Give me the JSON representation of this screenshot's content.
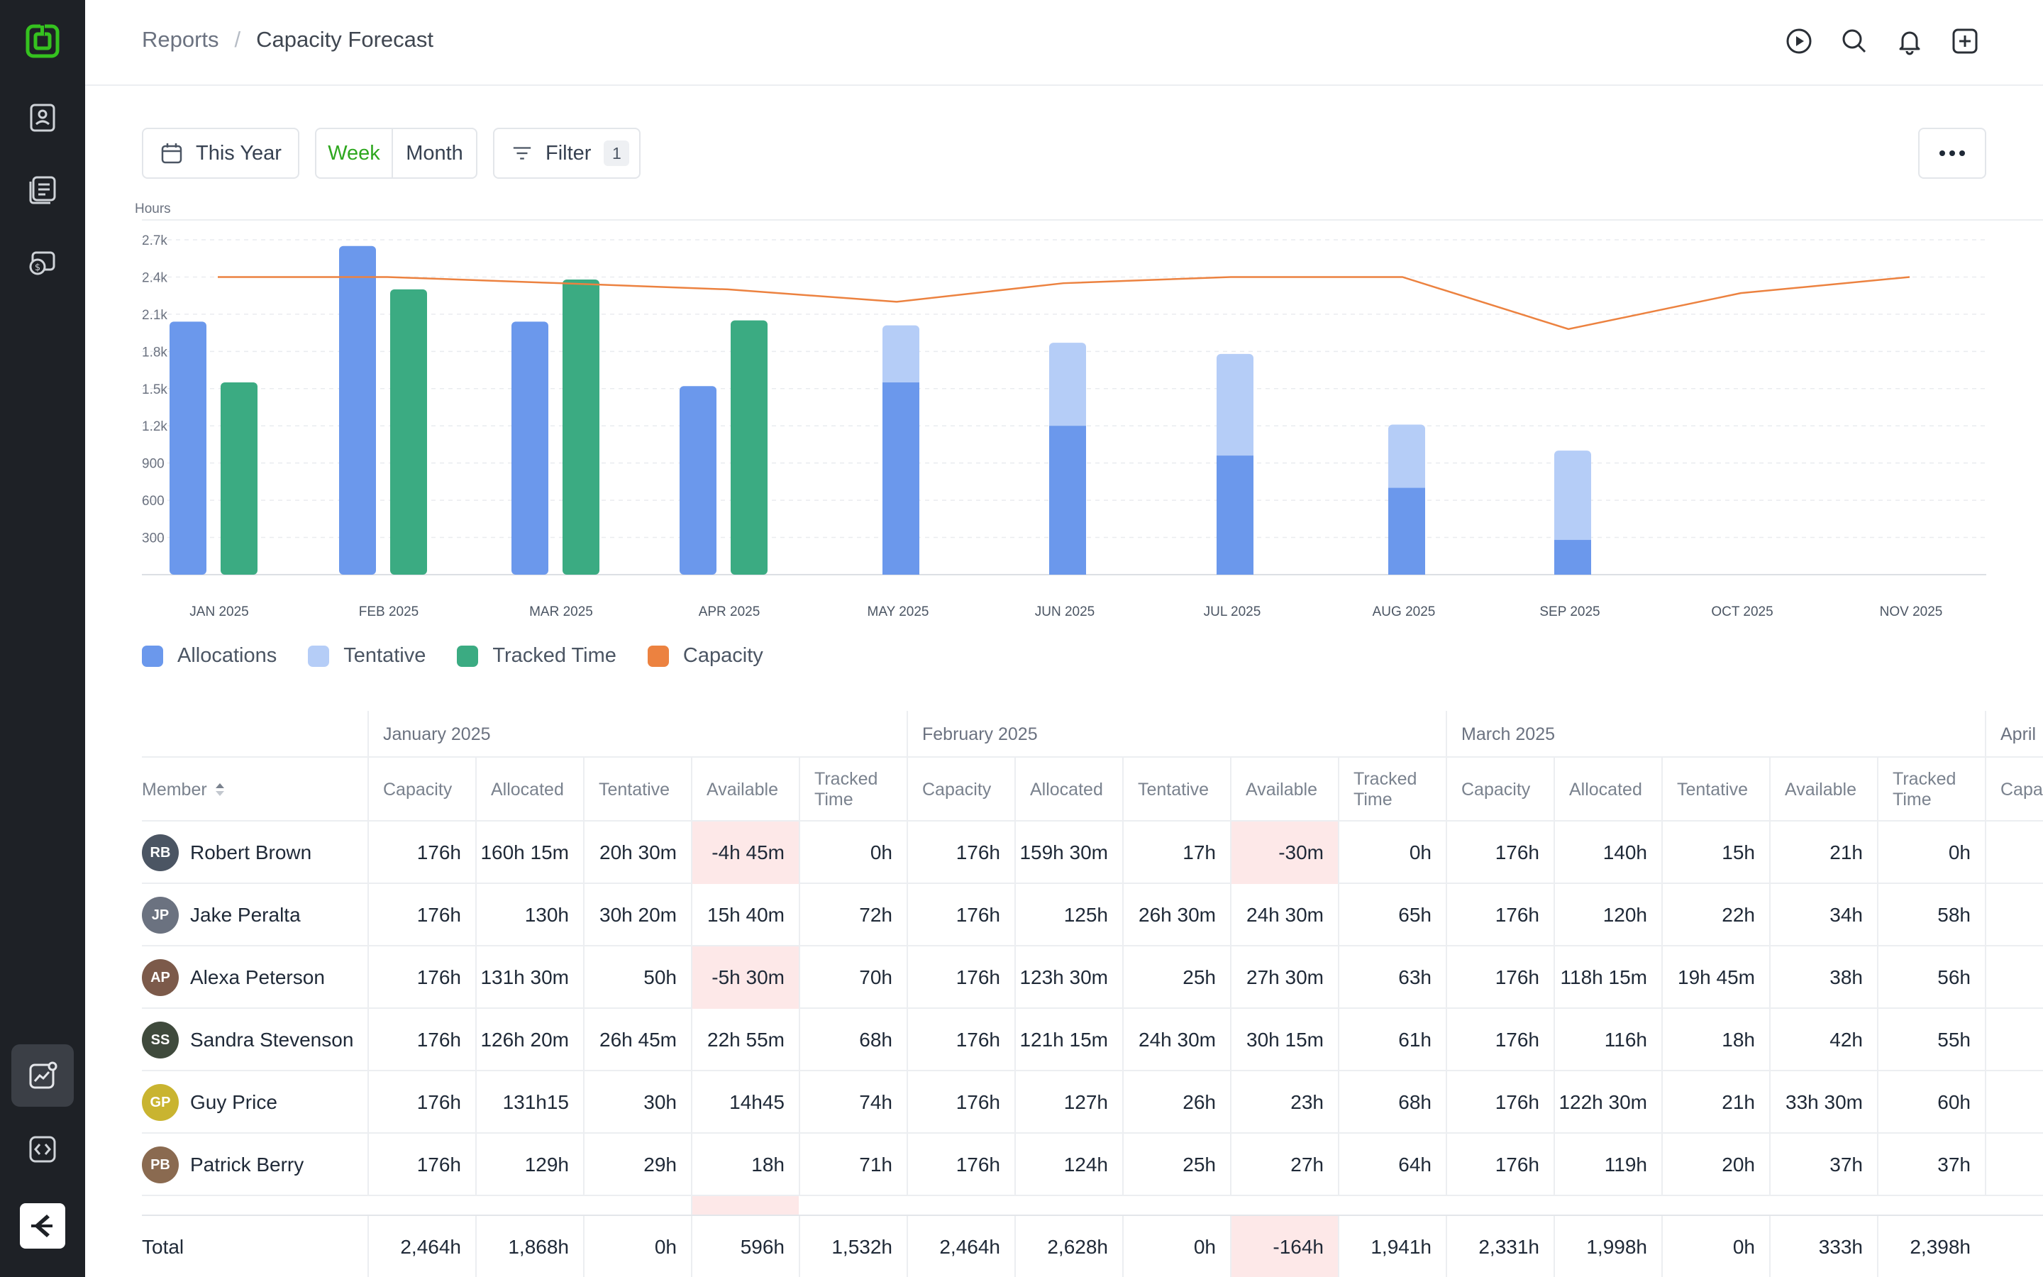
{
  "header": {
    "breadcrumb": [
      "Reports",
      "Capacity Forecast"
    ],
    "separator": "/"
  },
  "icons": {
    "sidebar": [
      "logo-icon",
      "contacts-icon",
      "projects-icon",
      "billing-icon",
      "reports-icon",
      "integrations-icon",
      "brand-icon"
    ],
    "header": [
      "play-icon",
      "search-icon",
      "bell-icon",
      "add-icon"
    ]
  },
  "toolbar": {
    "date_label": "This Year",
    "week_label": "Week",
    "month_label": "Month",
    "filter_label": "Filter",
    "filter_count": "1"
  },
  "colors": {
    "allocations": "#6b98ec",
    "tentative": "#b5cdf7",
    "tracked": "#3bab82",
    "capacity": "#ec8240",
    "brand_green": "#2ea71f",
    "negative_bg": "#fde8e8"
  },
  "chart_data": {
    "type": "bar",
    "ylabel": "Hours",
    "ylim": [
      0,
      2700
    ],
    "yticks": [
      "300",
      "600",
      "900",
      "1.2k",
      "1.5k",
      "1.8k",
      "2.1k",
      "2.4k",
      "2.7k"
    ],
    "categories": [
      "JAN 2025",
      "FEB 2025",
      "MAR 2025",
      "APR 2025",
      "MAY 2025",
      "JUN 2025",
      "JUL 2025",
      "AUG 2025",
      "SEP 2025",
      "OCT 2025",
      "NOV 2025"
    ],
    "series": [
      {
        "name": "Allocations",
        "values": [
          2040,
          2650,
          2040,
          1520,
          1550,
          1200,
          960,
          700,
          280,
          0,
          0
        ]
      },
      {
        "name": "Tentative",
        "values": [
          0,
          0,
          0,
          0,
          460,
          670,
          820,
          510,
          720,
          0,
          0
        ]
      },
      {
        "name": "Tracked Time",
        "values": [
          1550,
          2300,
          2380,
          2050,
          0,
          0,
          0,
          0,
          0,
          0,
          0
        ]
      },
      {
        "name": "Capacity",
        "values": [
          2400,
          2400,
          2350,
          2300,
          2200,
          2350,
          2400,
          2400,
          1980,
          2270,
          2400
        ]
      }
    ],
    "grid": true,
    "legend": "bottom-left"
  },
  "legend": [
    {
      "label": "Allocations",
      "color": "#6b98ec"
    },
    {
      "label": "Tentative",
      "color": "#b5cdf7"
    },
    {
      "label": "Tracked Time",
      "color": "#3bab82"
    },
    {
      "label": "Capacity",
      "color": "#ec8240"
    }
  ],
  "table": {
    "member_header": "Member",
    "months": [
      "January 2025",
      "February 2025",
      "March 2025",
      "April"
    ],
    "columns": [
      "Capacity",
      "Allocated",
      "Tentative",
      "Available",
      "Tracked Time"
    ],
    "next_column": "Capa",
    "rows": [
      {
        "name": "Robert Brown",
        "initials": "RB",
        "avatar_color": "#4b5563",
        "values": [
          "176h",
          "160h 15m",
          "20h 30m",
          "-4h 45m",
          "0h",
          "176h",
          "159h 30m",
          "17h",
          "-30m",
          "0h",
          "176h",
          "140h",
          "15h",
          "21h",
          "0h"
        ]
      },
      {
        "name": "Jake Peralta",
        "initials": "JP",
        "avatar_color": "#6b7280",
        "values": [
          "176h",
          "130h",
          "30h 20m",
          "15h 40m",
          "72h",
          "176h",
          "125h",
          "26h 30m",
          "24h 30m",
          "65h",
          "176h",
          "120h",
          "22h",
          "34h",
          "58h"
        ]
      },
      {
        "name": "Alexa Peterson",
        "initials": "AP",
        "avatar_color": "#7c5a4a",
        "values": [
          "176h",
          "131h 30m",
          "50h",
          "-5h 30m",
          "70h",
          "176h",
          "123h 30m",
          "25h",
          "27h 30m",
          "63h",
          "176h",
          "118h 15m",
          "19h 45m",
          "38h",
          "56h"
        ]
      },
      {
        "name": "Sandra Stevenson",
        "initials": "SS",
        "avatar_color": "#3f4a3c",
        "values": [
          "176h",
          "126h 20m",
          "26h 45m",
          "22h 55m",
          "68h",
          "176h",
          "121h 15m",
          "24h 30m",
          "30h 15m",
          "61h",
          "176h",
          "116h",
          "18h",
          "42h",
          "55h"
        ]
      },
      {
        "name": "Guy Price",
        "initials": "GP",
        "avatar_color": "#c9b430",
        "values": [
          "176h",
          "131h15",
          "30h",
          "14h45",
          "74h",
          "176h",
          "127h",
          "26h",
          "23h",
          "68h",
          "176h",
          "122h 30m",
          "21h",
          "33h 30m",
          "60h"
        ]
      },
      {
        "name": "Patrick Berry",
        "initials": "PB",
        "avatar_color": "#8a6a50",
        "values": [
          "176h",
          "129h",
          "29h",
          "18h",
          "71h",
          "176h",
          "124h",
          "25h",
          "27h",
          "64h",
          "176h",
          "119h",
          "20h",
          "37h",
          "37h"
        ]
      }
    ],
    "total": {
      "label": "Total",
      "values": [
        "2,464h",
        "1,868h",
        "0h",
        "596h",
        "1,532h",
        "2,464h",
        "2,628h",
        "0h",
        "-164h",
        "1,941h",
        "2,331h",
        "1,998h",
        "0h",
        "333h",
        "2,398h"
      ]
    }
  }
}
